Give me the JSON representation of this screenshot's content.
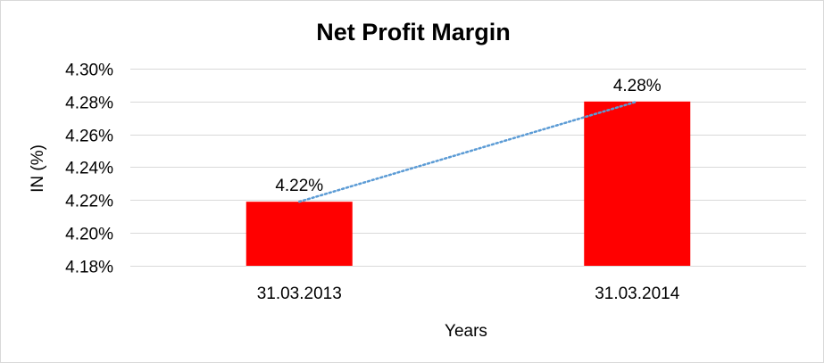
{
  "chart_data": {
    "type": "bar",
    "title": "Net Profit Margin",
    "xlabel": "Years",
    "ylabel": "IN (%)",
    "categories": [
      "31.03.2013",
      "31.03.2014"
    ],
    "series": [
      {
        "values": [
          4.219,
          4.28
        ],
        "labels": [
          "4.22%",
          "4.28%"
        ]
      }
    ],
    "ylim": [
      4.18,
      4.3
    ],
    "yticks": [
      4.18,
      4.2,
      4.22,
      4.24,
      4.26,
      4.28,
      4.3
    ],
    "ytick_labels": [
      "4.18%",
      "4.20%",
      "4.22%",
      "4.24%",
      "4.26%",
      "4.28%",
      "4.30%"
    ],
    "grid": true,
    "trendline": "linear, dotted",
    "colors": {
      "bar": "#ff0000",
      "trendline": "#5b9bd5",
      "grid": "#d9d9d9"
    }
  }
}
